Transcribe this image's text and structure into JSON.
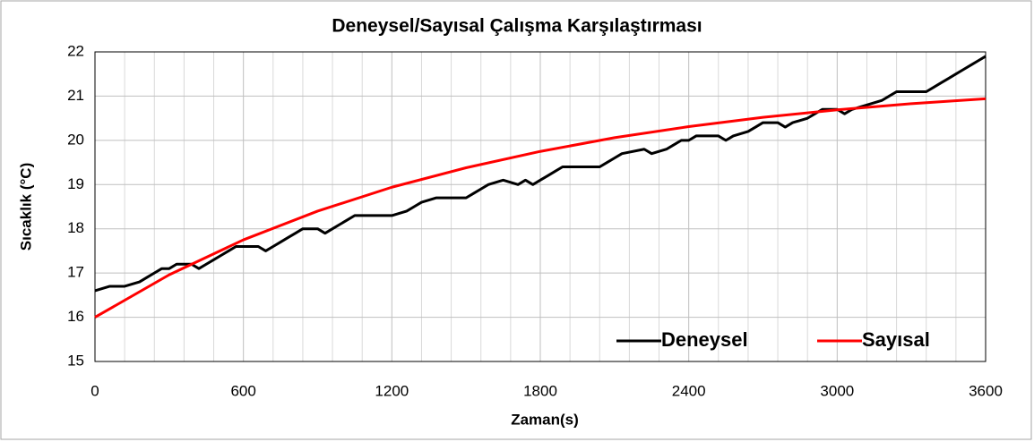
{
  "chart_data": {
    "type": "line",
    "title": "Deneysel/Sayısal Çalışma Karşılaştırması",
    "x_label": "Zaman(s)",
    "y_label": "Sıcaklık (°C)",
    "xlim": [
      0,
      3600
    ],
    "xticks": [
      0,
      600,
      1200,
      1800,
      2400,
      3000,
      3600
    ],
    "x_minor_grid": [
      120,
      240,
      360,
      480,
      720,
      840,
      960,
      1080,
      1320,
      1440,
      1560,
      1680,
      1920,
      2040,
      2160,
      2280,
      2520,
      2640,
      2760,
      2880,
      3120,
      3240,
      3360,
      3480
    ],
    "ylim": [
      15,
      22
    ],
    "yticks": [
      15,
      16,
      17,
      18,
      19,
      20,
      21,
      22
    ],
    "grid": true,
    "legend": "lower right",
    "series": [
      {
        "name": "Deneysel",
        "color": "#000000",
        "x": [
          0,
          60,
          120,
          180,
          210,
          240,
          270,
          300,
          330,
          390,
          420,
          450,
          480,
          510,
          540,
          570,
          600,
          660,
          690,
          720,
          750,
          780,
          810,
          840,
          900,
          930,
          960,
          990,
          1020,
          1050,
          1200,
          1260,
          1290,
          1320,
          1380,
          1500,
          1530,
          1560,
          1590,
          1650,
          1710,
          1740,
          1770,
          1800,
          1830,
          1860,
          1890,
          2040,
          2070,
          2100,
          2130,
          2220,
          2250,
          2310,
          2340,
          2370,
          2400,
          2430,
          2520,
          2550,
          2580,
          2640,
          2670,
          2700,
          2760,
          2790,
          2820,
          2880,
          2910,
          2940,
          3000,
          3030,
          3060,
          3120,
          3180,
          3210,
          3240,
          3360,
          3390,
          3420,
          3450,
          3480,
          3510,
          3540,
          3570,
          3600
        ],
        "values": [
          16.6,
          16.7,
          16.7,
          16.8,
          16.9,
          17.0,
          17.1,
          17.1,
          17.2,
          17.2,
          17.1,
          17.2,
          17.3,
          17.4,
          17.5,
          17.6,
          17.6,
          17.6,
          17.5,
          17.6,
          17.7,
          17.8,
          17.9,
          18.0,
          18.0,
          17.9,
          18.0,
          18.1,
          18.2,
          18.3,
          18.3,
          18.4,
          18.5,
          18.6,
          18.7,
          18.7,
          18.8,
          18.9,
          19.0,
          19.1,
          19.0,
          19.1,
          19.0,
          19.1,
          19.2,
          19.3,
          19.4,
          19.4,
          19.5,
          19.6,
          19.7,
          19.8,
          19.7,
          19.8,
          19.9,
          20.0,
          20.0,
          20.1,
          20.1,
          20.0,
          20.1,
          20.2,
          20.3,
          20.4,
          20.4,
          20.3,
          20.4,
          20.5,
          20.6,
          20.7,
          20.7,
          20.6,
          20.7,
          20.8,
          20.9,
          21.0,
          21.1,
          21.1,
          21.2,
          21.3,
          21.4,
          21.5,
          21.6,
          21.7,
          21.8,
          21.9
        ]
      },
      {
        "name": "Sayısal",
        "color": "#ff0000",
        "x": [
          0,
          300,
          600,
          900,
          1200,
          1500,
          1800,
          2100,
          2400,
          2700,
          3000,
          3300,
          3600
        ],
        "values": [
          16.0,
          16.96,
          17.75,
          18.4,
          18.94,
          19.38,
          19.75,
          20.06,
          20.31,
          20.52,
          20.69,
          20.83,
          20.94
        ]
      }
    ]
  }
}
